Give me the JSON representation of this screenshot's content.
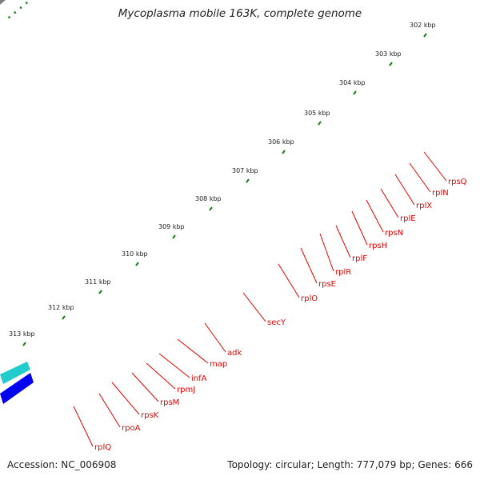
{
  "title": "Mycoplasma mobile 163K, complete genome",
  "footer": {
    "accession": "Accession: NC_006908",
    "summary": "Topology: circular; Length: 777,079 bp; Genes: 666"
  },
  "colors": {
    "background": "#ffffff",
    "backbone": "#7f7f7f",
    "forward_gene": "#ee0000",
    "reverse_gene": "#f08080",
    "tick_mark": "#1a7a1a",
    "gene_label": "#ee0000",
    "secY": "#aaee33",
    "adk": "#22aaee",
    "rpoA": "#ff8800",
    "other_strand_cyan": "#22cccc",
    "other_strand_blue": "#0000ee"
  },
  "kbp_labels": [
    "302 kbp",
    "303 kbp",
    "304 kbp",
    "305 kbp",
    "306 kbp",
    "307 kbp",
    "308 kbp",
    "309 kbp",
    "310 kbp",
    "311 kbp",
    "312 kbp",
    "313 kbp"
  ],
  "gene_labels": [
    "rpsQ",
    "rplN",
    "rplX",
    "rplE",
    "rpsN",
    "rpsH",
    "rplF",
    "rplR",
    "rpsE",
    "rplO",
    "secY",
    "adk",
    "map",
    "infA",
    "rpmJ",
    "rpsM",
    "rpsK",
    "rpoA",
    "rplQ"
  ]
}
